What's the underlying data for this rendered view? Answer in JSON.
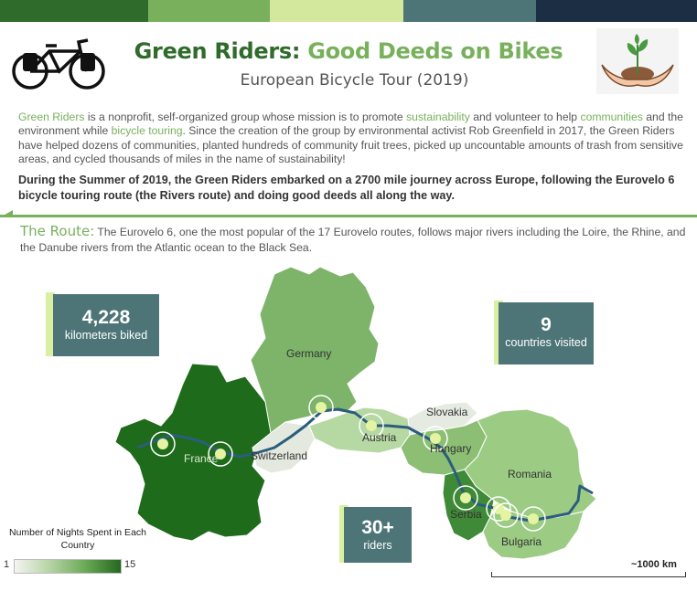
{
  "colors": {
    "dark_green": "#2f6b2b",
    "light_green": "#78b05c",
    "kpi_bg": "#4d7476",
    "accent": "#d9f0a3"
  },
  "header": {
    "title_part1": "Green Riders:",
    "title_part2": " Good Deeds on Bikes",
    "subtitle": "European Bicycle Tour (2019)",
    "left_icon": "bicycle-icon",
    "right_icon": "plant-in-hands-icon"
  },
  "intro": {
    "p1": "Green Riders",
    "p2": " is a nonprofit, self-organized group whose mission is to promote ",
    "p3": "sustainability",
    "p4": " and volunteer to help ",
    "p5": "communities",
    "p6": " and the environment while ",
    "p7": "bicycle touring",
    "p8": ". Since the creation of the group by environmental activist Rob Greenfield in 2017, the Green Riders have helped dozens of communities, planted hundreds of community fruit trees, picked up uncountable amounts of trash from sensitive areas, and cycled thousands of miles in the name of sustainability!",
    "bold": "During the Summer of 2019, the Green Riders embarked on a 2700 mile journey across Europe, following the Eurovelo 6 bicycle touring route (the Rivers route) and doing good deeds all along the way."
  },
  "route": {
    "label": "The Route:",
    "text": " The Eurovelo 6, one the most popular of the 17 Eurovelo routes, follows major rivers including the Loire, the Rhine, and the Danube rivers from the Atlantic ocean to the Black Sea."
  },
  "countries": {
    "germany": "Germany",
    "france": "France",
    "switzerland": "Switzerland",
    "austria": "Austria",
    "slovakia": "Slovakia",
    "hungary": "Hungary",
    "romania": "Romania",
    "serbia": "Serbia",
    "bulgaria": "Bulgaria"
  },
  "kpis": {
    "km_value": "4,228",
    "km_label": "kilometers biked",
    "countries_value": "9",
    "countries_label": "countries visited",
    "riders_value": "30+",
    "riders_label": "riders"
  },
  "legend": {
    "title": "Number of Nights Spent in Each Country",
    "min": "1",
    "max": "15"
  },
  "scale": {
    "label": "~1000 km"
  }
}
